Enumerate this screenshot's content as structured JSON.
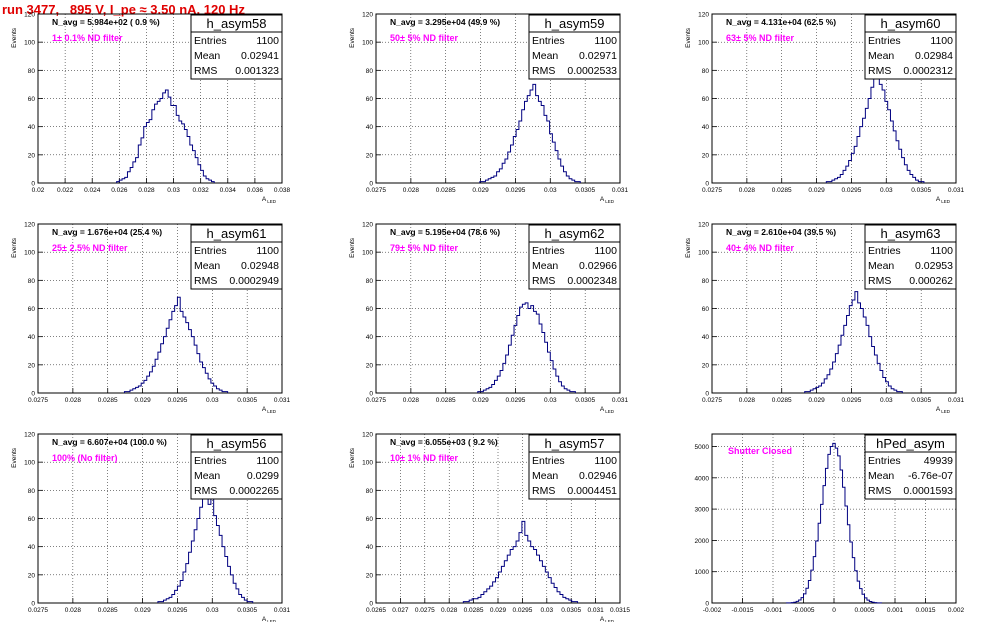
{
  "run_title": "run 3477,   895 V, I_pe ≈ 3.50 nA, 120 Hz",
  "chart_data": [
    {
      "type": "bar",
      "name": "h_asym58",
      "stats": {
        "entries_label": "Entries",
        "entries": "1100",
        "mean_label": "Mean",
        "mean": "0.02941",
        "rms_label": "RMS",
        "rms": "0.001323"
      },
      "n_avg": "N_avg = 5.984e+02 ( 0.9 %)",
      "filter": "1± 0.1% ND filter",
      "xlabel": "A",
      "xlabel_sub": "LED",
      "ylabel": "Events",
      "xlim": [
        0.02,
        0.038
      ],
      "ylim": [
        0,
        120
      ],
      "xticks": [
        "0.02",
        "0.022",
        "0.024",
        "0.026",
        "0.028",
        "0.03",
        "0.032",
        "0.034",
        "0.036",
        "0.038"
      ],
      "yticks": [
        "0",
        "20",
        "40",
        "60",
        "80",
        "100",
        "120"
      ],
      "center": 0.0294,
      "bin": 0.0002,
      "values": [
        1,
        2,
        3,
        4,
        8,
        11,
        15,
        18,
        27,
        32,
        40,
        43,
        45,
        52,
        56,
        58,
        60,
        64,
        66,
        61,
        55,
        55,
        48,
        44,
        42,
        38,
        33,
        27,
        23,
        18,
        13,
        9,
        5,
        3,
        2,
        1
      ]
    },
    {
      "type": "bar",
      "name": "h_asym59",
      "stats": {
        "entries_label": "Entries",
        "entries": "1100",
        "mean_label": "Mean",
        "mean": "0.02971",
        "rms_label": "RMS",
        "rms": "0.0002533"
      },
      "n_avg": "N_avg = 3.295e+04 (49.9 %)",
      "filter": "50± 5% ND filter",
      "xlabel": "A",
      "xlabel_sub": "LED",
      "ylabel": "Events",
      "xlim": [
        0.0275,
        0.031
      ],
      "ylim": [
        0,
        120
      ],
      "xticks": [
        "0.0275",
        "0.028",
        "0.0285",
        "0.029",
        "0.0295",
        "0.03",
        "0.0305",
        "0.031"
      ],
      "yticks": [
        "0",
        "20",
        "40",
        "60",
        "80",
        "100",
        "120"
      ],
      "center": 0.02971,
      "bin": 4e-05,
      "values": [
        1,
        1,
        2,
        3,
        4,
        5,
        8,
        10,
        14,
        17,
        22,
        27,
        33,
        38,
        44,
        52,
        58,
        62,
        66,
        70,
        62,
        58,
        55,
        48,
        44,
        35,
        29,
        23,
        17,
        12,
        8,
        5,
        3,
        2,
        1,
        1
      ]
    },
    {
      "type": "bar",
      "name": "h_asym60",
      "stats": {
        "entries_label": "Entries",
        "entries": "1100",
        "mean_label": "Mean",
        "mean": "0.02984",
        "rms_label": "RMS",
        "rms": "0.0002312"
      },
      "n_avg": "N_avg = 4.131e+04 (62.5 %)",
      "filter": "63± 5% ND filter",
      "xlabel": "A",
      "xlabel_sub": "LED",
      "ylabel": "Events",
      "xlim": [
        0.0275,
        0.031
      ],
      "ylim": [
        0,
        120
      ],
      "xticks": [
        "0.0275",
        "0.028",
        "0.0285",
        "0.029",
        "0.0295",
        "0.03",
        "0.0305",
        "0.031"
      ],
      "yticks": [
        "0",
        "20",
        "40",
        "60",
        "80",
        "100",
        "120"
      ],
      "center": 0.02984,
      "bin": 4e-05,
      "values": [
        1,
        1,
        2,
        3,
        4,
        6,
        9,
        12,
        16,
        21,
        26,
        33,
        40,
        46,
        53,
        60,
        68,
        76,
        82,
        70,
        66,
        58,
        52,
        44,
        37,
        30,
        24,
        18,
        13,
        9,
        6,
        4,
        2,
        1,
        1
      ]
    },
    {
      "type": "bar",
      "name": "h_asym61",
      "stats": {
        "entries_label": "Entries",
        "entries": "1100",
        "mean_label": "Mean",
        "mean": "0.02948",
        "rms_label": "RMS",
        "rms": "0.0002949"
      },
      "n_avg": "N_avg = 1.676e+04 (25.4 %)",
      "filter": "25± 2.5% ND filter",
      "xlabel": "A",
      "xlabel_sub": "LED",
      "ylabel": "Events",
      "xlim": [
        0.0275,
        0.031
      ],
      "ylim": [
        0,
        120
      ],
      "xticks": [
        "0.0275",
        "0.028",
        "0.0285",
        "0.029",
        "0.0295",
        "0.03",
        "0.0305",
        "0.031"
      ],
      "yticks": [
        "0",
        "20",
        "40",
        "60",
        "80",
        "100",
        "120"
      ],
      "center": 0.02948,
      "bin": 4e-05,
      "values": [
        1,
        1,
        2,
        3,
        4,
        5,
        7,
        9,
        12,
        15,
        19,
        24,
        29,
        35,
        40,
        46,
        52,
        58,
        62,
        68,
        58,
        54,
        50,
        45,
        40,
        34,
        28,
        22,
        18,
        14,
        10,
        7,
        5,
        3,
        2,
        1,
        1
      ]
    },
    {
      "type": "bar",
      "name": "h_asym62",
      "stats": {
        "entries_label": "Entries",
        "entries": "1100",
        "mean_label": "Mean",
        "mean": "0.02966",
        "rms_label": "RMS",
        "rms": "0.0002348"
      },
      "n_avg": "N_avg = 5.195e+04 (78.6 %)",
      "filter": "79± 5% ND filter",
      "xlabel": "A",
      "xlabel_sub": "LED",
      "ylabel": "Events",
      "xlim": [
        0.0275,
        0.031
      ],
      "ylim": [
        0,
        120
      ],
      "xticks": [
        "0.0275",
        "0.028",
        "0.0285",
        "0.029",
        "0.0295",
        "0.03",
        "0.0305",
        "0.031"
      ],
      "yticks": [
        "0",
        "20",
        "40",
        "60",
        "80",
        "100",
        "120"
      ],
      "center": 0.02966,
      "bin": 4e-05,
      "values": [
        1,
        1,
        2,
        3,
        4,
        6,
        9,
        12,
        16,
        21,
        27,
        34,
        41,
        48,
        55,
        61,
        63,
        64,
        60,
        62,
        58,
        56,
        49,
        43,
        36,
        29,
        23,
        17,
        12,
        8,
        5,
        3,
        2,
        1,
        1
      ]
    },
    {
      "type": "bar",
      "name": "h_asym63",
      "stats": {
        "entries_label": "Entries",
        "entries": "1100",
        "mean_label": "Mean",
        "mean": "0.02953",
        "rms_label": "RMS",
        "rms": "0.000262"
      },
      "n_avg": "N_avg = 2.610e+04 (39.5 %)",
      "filter": "40± 4% ND filter",
      "xlabel": "A",
      "xlabel_sub": "LED",
      "ylabel": "Events",
      "xlim": [
        0.0275,
        0.031
      ],
      "ylim": [
        0,
        120
      ],
      "xticks": [
        "0.0275",
        "0.028",
        "0.0285",
        "0.029",
        "0.0295",
        "0.03",
        "0.0305",
        "0.031"
      ],
      "yticks": [
        "0",
        "20",
        "40",
        "60",
        "80",
        "100",
        "120"
      ],
      "center": 0.02953,
      "bin": 4e-05,
      "values": [
        1,
        1,
        2,
        3,
        4,
        5,
        7,
        10,
        13,
        17,
        22,
        28,
        34,
        41,
        48,
        55,
        62,
        66,
        72,
        64,
        60,
        54,
        48,
        40,
        33,
        27,
        21,
        16,
        11,
        8,
        5,
        3,
        2,
        1,
        1
      ]
    },
    {
      "type": "bar",
      "name": "h_asym56",
      "stats": {
        "entries_label": "Entries",
        "entries": "1100",
        "mean_label": "Mean",
        "mean": "0.0299",
        "rms_label": "RMS",
        "rms": "0.0002265"
      },
      "n_avg": "N_avg = 6.607e+04 (100.0 %)",
      "filter": "100% (No filter)",
      "xlabel": "A",
      "xlabel_sub": "LED",
      "ylabel": "Events",
      "xlim": [
        0.0275,
        0.031
      ],
      "ylim": [
        0,
        120
      ],
      "xticks": [
        "0.0275",
        "0.028",
        "0.0285",
        "0.029",
        "0.0295",
        "0.03",
        "0.0305",
        "0.031"
      ],
      "yticks": [
        "0",
        "20",
        "40",
        "60",
        "80",
        "100",
        "120"
      ],
      "center": 0.0299,
      "bin": 4e-05,
      "values": [
        1,
        1,
        2,
        3,
        4,
        6,
        9,
        12,
        16,
        22,
        28,
        36,
        44,
        52,
        60,
        68,
        76,
        85,
        70,
        74,
        62,
        55,
        48,
        40,
        33,
        26,
        20,
        14,
        10,
        6,
        4,
        2,
        1,
        1
      ]
    },
    {
      "type": "bar",
      "name": "h_asym57",
      "stats": {
        "entries_label": "Entries",
        "entries": "1100",
        "mean_label": "Mean",
        "mean": "0.02946",
        "rms_label": "RMS",
        "rms": "0.0004451"
      },
      "n_avg": "N_avg = 6.055e+03 ( 9.2 %)",
      "filter": "10± 1% ND filter",
      "xlabel": "A",
      "xlabel_sub": "LED",
      "ylabel": "Events",
      "xlim": [
        0.0265,
        0.0315
      ],
      "ylim": [
        0,
        120
      ],
      "xticks": [
        "0.0265",
        "0.027",
        "0.0275",
        "0.028",
        "0.0285",
        "0.029",
        "0.0295",
        "0.03",
        "0.0305",
        "0.031",
        "0.0315"
      ],
      "yticks": [
        "0",
        "20",
        "40",
        "60",
        "80",
        "100",
        "120"
      ],
      "center": 0.02946,
      "bin": 6e-05,
      "values": [
        1,
        1,
        2,
        3,
        3,
        4,
        6,
        8,
        10,
        12,
        15,
        18,
        22,
        26,
        30,
        34,
        38,
        40,
        44,
        50,
        58,
        48,
        44,
        40,
        38,
        34,
        30,
        26,
        22,
        18,
        14,
        11,
        8,
        6,
        4,
        3,
        2,
        1,
        1
      ]
    },
    {
      "type": "bar",
      "name": "hPed_asym",
      "stats": {
        "entries_label": "Entries",
        "entries": "49939",
        "mean_label": "Mean",
        "mean": "-6.76e-07",
        "rms_label": "RMS",
        "rms": "0.0001593"
      },
      "n_avg": "",
      "filter": "Shutter Closed",
      "xlabel": "",
      "xlabel_sub": "",
      "ylabel": "",
      "xlim": [
        -0.002,
        0.002
      ],
      "ylim": [
        0,
        5400
      ],
      "xticks": [
        "-0.002",
        "-0.0015",
        "-0.001",
        "-0.0005",
        "0",
        "0.0005",
        "0.001",
        "0.0015",
        "0.002"
      ],
      "yticks": [
        "0",
        "1000",
        "2000",
        "3000",
        "4000",
        "5000"
      ],
      "center": 0.0,
      "bin": 4e-05,
      "values": [
        2,
        5,
        12,
        25,
        50,
        95,
        170,
        290,
        470,
        720,
        1050,
        1480,
        1980,
        2550,
        3150,
        3750,
        4300,
        4750,
        5000,
        5100,
        4950,
        4700,
        4250,
        3700,
        3100,
        2500,
        1950,
        1450,
        1030,
        700,
        460,
        280,
        165,
        90,
        48,
        22,
        10,
        4,
        2
      ]
    }
  ]
}
